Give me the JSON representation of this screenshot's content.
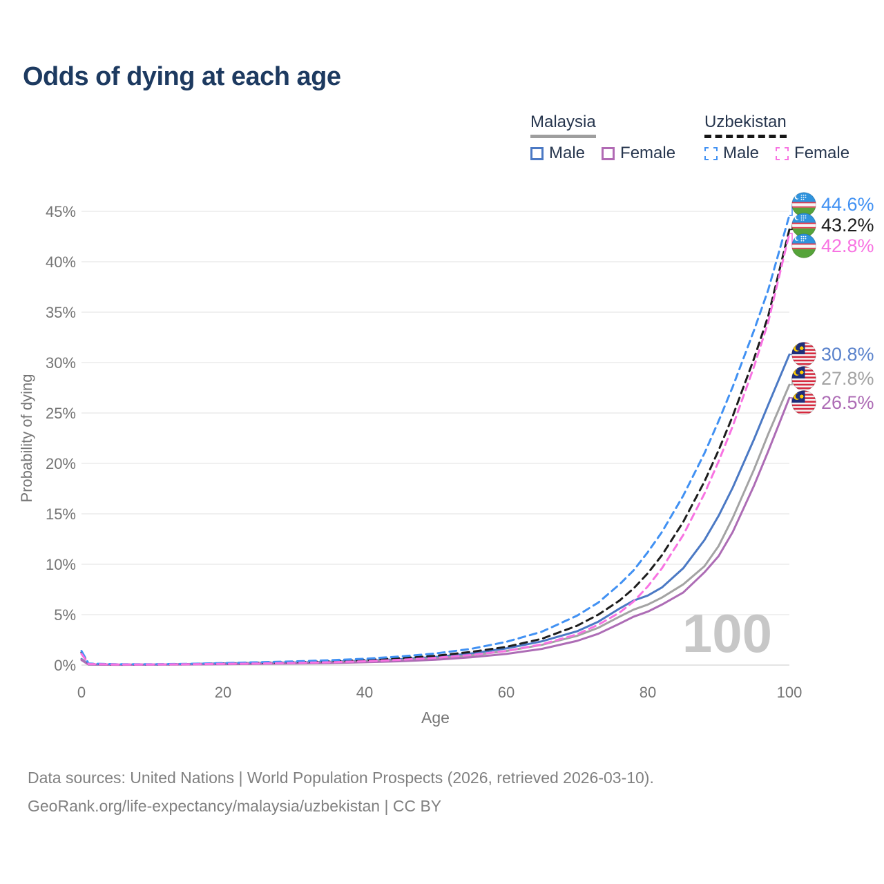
{
  "title": "Odds of dying at each age",
  "legend": {
    "groups": [
      {
        "country": "Malaysia",
        "line_style": "solid",
        "underline_color": "#9e9e9e",
        "items": [
          {
            "label": "Male",
            "color": "#4b79c4"
          },
          {
            "label": "Female",
            "color": "#b16ab4"
          }
        ]
      },
      {
        "country": "Uzbekistan",
        "line_style": "dashed",
        "underline_color": "#161616",
        "items": [
          {
            "label": "Male",
            "color": "#4191f3"
          },
          {
            "label": "Female",
            "color": "#f873e2"
          }
        ]
      }
    ]
  },
  "end_labels": [
    {
      "flag": "uzbekistan",
      "value": "44.6%",
      "color": "#4191f3"
    },
    {
      "flag": "uzbekistan",
      "value": "43.2%",
      "color": "#1d1d1d"
    },
    {
      "flag": "uzbekistan",
      "value": "42.8%",
      "color": "#f873e2"
    },
    {
      "flag": "malaysia",
      "value": "30.8%",
      "color": "#5b83cc"
    },
    {
      "flag": "malaysia",
      "value": "27.8%",
      "color": "#a3a3a3"
    },
    {
      "flag": "malaysia",
      "value": "26.5%",
      "color": "#ad6cb5"
    }
  ],
  "watermark": "100",
  "footer": {
    "line1": "Data sources: United Nations | World Population Prospects (2026, retrieved 2026-03-10).",
    "line2": "GeoRank.org/life-expectancy/malaysia/uzbekistan | CC BY"
  },
  "chart_data": {
    "type": "line",
    "title": "Odds of dying at each age",
    "xlabel": "Age",
    "ylabel": "Probability of dying",
    "xlim": [
      0,
      100
    ],
    "ylim": [
      0,
      45
    ],
    "x_ticks": [
      0,
      20,
      40,
      60,
      80,
      100
    ],
    "y_ticks": [
      0,
      5,
      10,
      15,
      20,
      25,
      30,
      35,
      40,
      45
    ],
    "y_tick_suffix": "%",
    "grid": "horizontal",
    "legend_position": "top-right",
    "x": [
      0,
      1,
      5,
      10,
      15,
      20,
      25,
      30,
      35,
      40,
      45,
      50,
      55,
      60,
      65,
      70,
      73,
      76,
      78,
      80,
      82,
      85,
      88,
      90,
      92,
      95,
      97,
      100
    ],
    "series": [
      {
        "id": "uzbekistan-male",
        "name": "Uzbekistan Male",
        "country": "Uzbekistan",
        "sex": "male",
        "color": "#4191f3",
        "dashed": true,
        "end_label": "44.6%",
        "values": [
          1.4,
          0.15,
          0.08,
          0.08,
          0.12,
          0.2,
          0.28,
          0.36,
          0.48,
          0.62,
          0.85,
          1.15,
          1.6,
          2.3,
          3.3,
          4.9,
          6.2,
          8.0,
          9.4,
          11.2,
          13.2,
          16.8,
          21.0,
          24.2,
          27.6,
          33.2,
          37.2,
          44.6
        ]
      },
      {
        "id": "uzbekistan-both",
        "name": "Uzbekistan Both sexes",
        "country": "Uzbekistan",
        "sex": "all",
        "color": "#1d1d1d",
        "dashed": true,
        "end_label": "43.2%",
        "values": [
          1.25,
          0.12,
          0.07,
          0.07,
          0.1,
          0.16,
          0.22,
          0.28,
          0.38,
          0.5,
          0.68,
          0.92,
          1.3,
          1.8,
          2.6,
          3.9,
          5.0,
          6.4,
          7.6,
          9.1,
          10.9,
          14.2,
          18.2,
          21.3,
          24.7,
          30.4,
          34.6,
          43.2
        ]
      },
      {
        "id": "uzbekistan-female",
        "name": "Uzbekistan Female",
        "country": "Uzbekistan",
        "sex": "female",
        "color": "#f873e2",
        "dashed": true,
        "end_label": "42.8%",
        "values": [
          1.1,
          0.1,
          0.06,
          0.06,
          0.08,
          0.12,
          0.16,
          0.21,
          0.28,
          0.38,
          0.52,
          0.72,
          1.0,
          1.4,
          2.05,
          3.05,
          4.0,
          5.2,
          6.3,
          7.8,
          9.6,
          12.9,
          17.0,
          20.2,
          23.7,
          29.6,
          34.0,
          42.8
        ]
      },
      {
        "id": "malaysia-male",
        "name": "Malaysia Male",
        "country": "Malaysia",
        "sex": "male",
        "color": "#4b79c4",
        "dashed": false,
        "end_label": "30.8%",
        "values": [
          0.6,
          0.07,
          0.04,
          0.05,
          0.1,
          0.17,
          0.21,
          0.26,
          0.33,
          0.43,
          0.58,
          0.8,
          1.15,
          1.65,
          2.35,
          3.35,
          4.3,
          5.6,
          6.4,
          6.9,
          7.7,
          9.6,
          12.4,
          14.8,
          17.6,
          22.4,
          25.8,
          30.8
        ]
      },
      {
        "id": "malaysia-both",
        "name": "Malaysia Both sexes",
        "country": "Malaysia",
        "sex": "all",
        "color": "#a3a3a3",
        "dashed": false,
        "end_label": "27.8%",
        "values": [
          0.55,
          0.06,
          0.04,
          0.045,
          0.08,
          0.13,
          0.17,
          0.21,
          0.27,
          0.36,
          0.48,
          0.67,
          0.96,
          1.4,
          2.0,
          2.9,
          3.7,
          4.8,
          5.5,
          6.0,
          6.7,
          8.0,
          9.8,
          11.8,
          14.6,
          19.4,
          22.9,
          27.8
        ]
      },
      {
        "id": "malaysia-female",
        "name": "Malaysia Female",
        "country": "Malaysia",
        "sex": "female",
        "color": "#ad6cb5",
        "dashed": false,
        "end_label": "26.5%",
        "values": [
          0.5,
          0.05,
          0.03,
          0.04,
          0.06,
          0.09,
          0.12,
          0.15,
          0.2,
          0.28,
          0.38,
          0.53,
          0.77,
          1.1,
          1.6,
          2.4,
          3.1,
          4.1,
          4.8,
          5.3,
          6.0,
          7.2,
          9.2,
          10.8,
          13.2,
          17.8,
          21.2,
          26.5
        ]
      }
    ]
  }
}
